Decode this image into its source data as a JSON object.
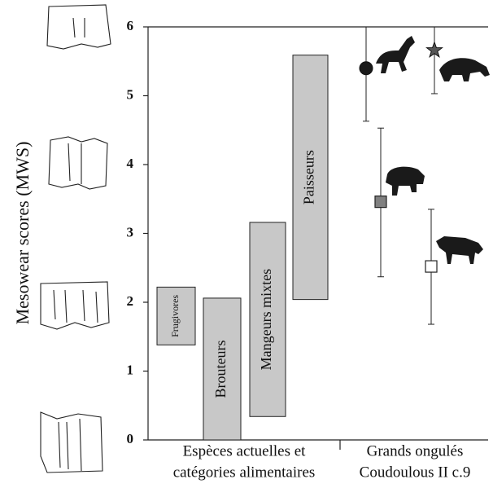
{
  "chart_data": {
    "type": "range",
    "ylabel": "Mesowear scores (MWS)",
    "ylim": [
      0,
      6
    ],
    "yticks": [
      0,
      1,
      2,
      3,
      4,
      5,
      6
    ],
    "bars": {
      "categories": [
        "Frugivores",
        "Brouteurs",
        "Mangeurs mixtes",
        "Paisseurs"
      ],
      "low": [
        1.38,
        0,
        0.34,
        2.04
      ],
      "high": [
        2.22,
        2.06,
        3.16,
        5.59
      ],
      "color": "#c8c8c8"
    },
    "points": {
      "values": [
        5.4,
        5.66,
        3.46,
        2.52
      ],
      "low": [
        4.63,
        5.03,
        2.37,
        1.68
      ],
      "high": [
        6,
        6,
        4.53,
        3.35
      ],
      "markers": [
        "circle",
        "star",
        "square",
        "square"
      ],
      "colors": [
        "#1a1a1a",
        "#555555",
        "#808080",
        "#ffffff"
      ]
    },
    "groups": [
      [
        "Espèces actuelles et",
        "catégories alimentaires"
      ],
      [
        "Grands ongulés",
        "Coudoulous II c.9"
      ]
    ]
  }
}
